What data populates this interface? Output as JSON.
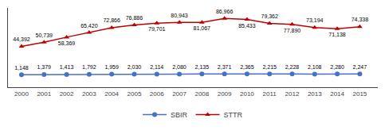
{
  "chart_data": {
    "type": "line",
    "x": [
      2000,
      2001,
      2002,
      2003,
      2004,
      2005,
      2006,
      2007,
      2008,
      2009,
      2010,
      2011,
      2012,
      2013,
      2014,
      2015
    ],
    "series": [
      {
        "name": "SBIR",
        "color": "#4472C4",
        "marker": "circle",
        "values": [
          1148,
          1379,
          1413,
          1792,
          1959,
          2030,
          2114,
          2080,
          2135,
          2371,
          2365,
          2215,
          2228,
          2108,
          2280,
          2247
        ],
        "value_labels": [
          "1,148",
          "1,379",
          "1,413",
          "1,792",
          "1,959",
          "2,030",
          "2,114",
          "2,080",
          "2,135",
          "2,371",
          "2,365",
          "2,215",
          "2,228",
          "2,108",
          "2,280",
          "2,247"
        ]
      },
      {
        "name": "STTR",
        "color": "#C00000",
        "marker": "triangle-up",
        "values": [
          44392,
          50739,
          58369,
          65420,
          72866,
          76886,
          79701,
          80943,
          81067,
          86966,
          85433,
          79362,
          77890,
          73194,
          71138,
          74338
        ],
        "value_labels": [
          "44,392",
          "50,739",
          "58,369",
          "65,420",
          "72,866",
          "76,886",
          "79,701",
          "80,943",
          "81,067",
          "86,966",
          "85,433",
          "79,362",
          "77,890",
          "73,194",
          "71,138",
          "74,338"
        ]
      }
    ],
    "xlim": [
      1999.4,
      2015.8
    ],
    "xticks": [
      2000,
      2001,
      2002,
      2003,
      2004,
      2005,
      2006,
      2007,
      2008,
      2009,
      2010,
      2011,
      2012,
      2013,
      2014,
      2015
    ],
    "ylim": [
      -18000,
      103000
    ],
    "yticks": [],
    "grid": false,
    "legend": "bottom",
    "data_labels": true,
    "tick_labels": "x"
  }
}
